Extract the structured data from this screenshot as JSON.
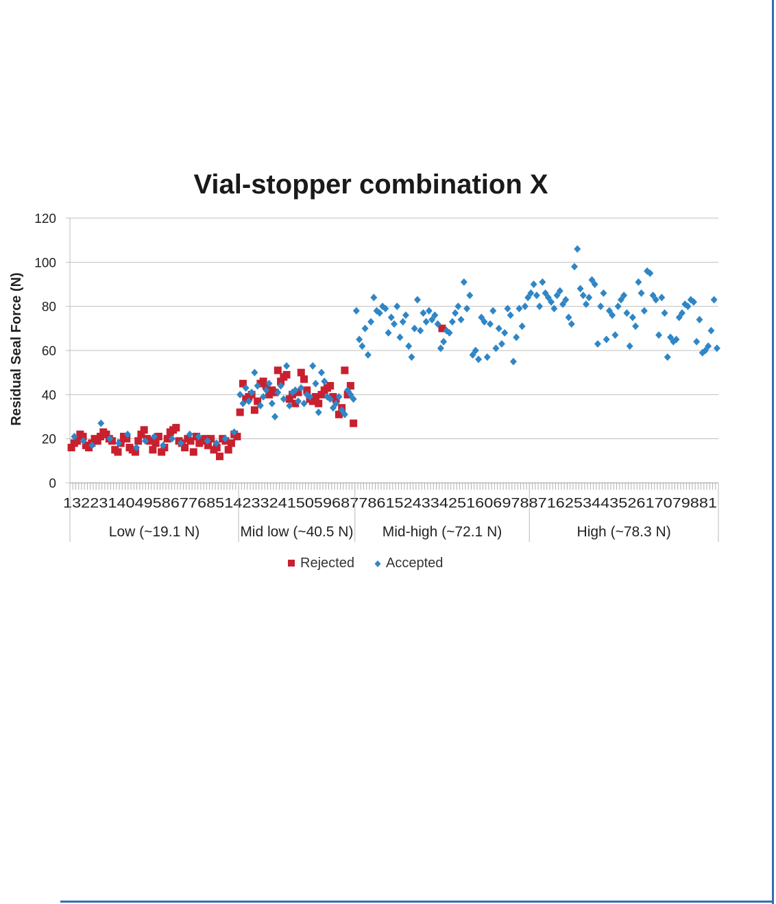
{
  "colors": {
    "rejected": "#c8202f",
    "accepted": "#2f86c6",
    "grid": "#bfbfbf",
    "frame": "#2e6fb7"
  },
  "chart_data": {
    "type": "scatter",
    "title": "Vial-stopper combination X",
    "xlabel": "",
    "ylabel": "Residual Seal Force (N)",
    "ylim": [
      0,
      120
    ],
    "yticks": [
      0,
      20,
      40,
      60,
      80,
      100,
      120
    ],
    "grid": true,
    "legend_position": "bottom",
    "x_tick_strip": "1322314049586776851423324150596877861524334251606978871625344352617079881",
    "categories": [
      "Low (~19.1 N)",
      "Mid low (~40.5 N)",
      "Mid-high (~72.1 N)",
      "High (~78.3 N)"
    ],
    "series": [
      {
        "name": "Rejected",
        "marker": "square",
        "groups": [
          [
            16,
            18,
            19,
            22,
            21,
            17,
            16,
            18,
            20,
            19,
            21,
            23,
            22,
            20,
            19,
            15,
            14,
            18,
            21,
            20,
            16,
            15,
            14,
            19,
            22,
            24,
            20,
            19,
            15,
            18,
            21,
            14,
            16,
            20,
            23,
            24,
            25,
            19,
            18,
            16,
            20,
            19,
            14,
            21,
            18,
            19,
            20,
            17,
            20,
            15,
            16,
            12,
            20,
            19,
            15,
            18,
            22,
            21
          ],
          [
            32,
            45,
            38,
            39,
            40,
            33,
            37,
            45,
            46,
            44,
            40,
            42,
            41,
            51,
            46,
            48,
            49,
            38,
            40,
            36,
            41,
            50,
            47,
            42,
            38,
            37,
            39,
            36,
            40,
            42,
            43,
            44,
            39,
            38,
            31,
            34,
            51,
            40,
            44,
            27
          ],
          [
            70
          ],
          []
        ]
      },
      {
        "name": "Accepted",
        "marker": "diamond",
        "groups": [
          [
            21,
            19,
            17,
            27,
            20,
            18,
            22,
            16,
            19,
            21,
            17,
            20,
            18,
            22,
            21,
            19,
            18,
            20,
            23
          ],
          [
            40,
            36,
            43,
            37,
            41,
            50,
            44,
            35,
            39,
            42,
            45,
            36,
            30,
            41,
            44,
            38,
            53,
            35,
            41,
            42,
            37,
            43,
            36,
            40,
            39,
            53,
            45,
            32,
            50,
            46,
            39,
            38,
            34,
            36,
            39,
            33,
            31,
            42,
            40,
            38
          ],
          [
            78,
            65,
            62,
            70,
            58,
            73,
            84,
            78,
            77,
            80,
            79,
            68,
            75,
            72,
            80,
            66,
            73,
            76,
            62,
            57,
            70,
            83,
            69,
            77,
            73,
            78,
            74,
            76,
            72,
            61,
            64,
            69,
            68,
            73,
            77,
            80,
            74,
            91,
            79,
            85,
            58,
            60,
            56,
            75,
            73,
            57,
            72,
            78,
            61,
            70,
            63,
            68,
            79,
            76,
            55,
            66,
            79,
            71,
            80,
            84
          ],
          [
            86,
            90,
            85,
            80,
            91,
            86,
            84,
            82,
            79,
            85,
            87,
            81,
            83,
            75,
            72,
            98,
            106,
            88,
            85,
            81,
            84,
            92,
            90,
            63,
            80,
            86,
            65,
            78,
            76,
            67,
            80,
            83,
            85,
            77,
            62,
            75,
            71,
            91,
            86,
            78,
            96,
            95,
            85,
            83,
            67,
            84,
            77,
            57,
            66,
            64,
            65,
            75,
            77,
            81,
            80,
            83,
            82,
            64,
            74,
            59,
            60,
            62,
            69,
            83,
            61
          ]
        ]
      }
    ]
  }
}
